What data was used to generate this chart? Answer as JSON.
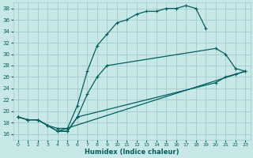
{
  "xlabel": "Humidex (Indice chaleur)",
  "xlim": [
    -0.5,
    23.5
  ],
  "ylim": [
    15,
    39
  ],
  "yticks": [
    16,
    18,
    20,
    22,
    24,
    26,
    28,
    30,
    32,
    34,
    36,
    38
  ],
  "xticks": [
    0,
    1,
    2,
    3,
    4,
    5,
    6,
    7,
    8,
    9,
    10,
    11,
    12,
    13,
    14,
    15,
    16,
    17,
    18,
    19,
    20,
    21,
    22,
    23
  ],
  "bg_color": "#c8e8e8",
  "grid_color": "#a0cccc",
  "line_color": "#006060",
  "line1_x": [
    0,
    1,
    2,
    3,
    4,
    5,
    6,
    7,
    8,
    9,
    10,
    11,
    12,
    13,
    14,
    15,
    16,
    17,
    18,
    19
  ],
  "line1_y": [
    19,
    18.5,
    18.5,
    17.5,
    17,
    17,
    21,
    27,
    31.5,
    33.5,
    35.5,
    36,
    37,
    37.5,
    37.5,
    38,
    38,
    38.5,
    38,
    34.5
  ],
  "line2_x": [
    0,
    1,
    2,
    3,
    4,
    5,
    6,
    7,
    8,
    9,
    20,
    21,
    22,
    23
  ],
  "line2_y": [
    19,
    18.5,
    18.5,
    17.5,
    16.5,
    16.5,
    19,
    23,
    26,
    28,
    31,
    30,
    27.5,
    27
  ],
  "line3_x": [
    0,
    1,
    2,
    3,
    4,
    5,
    6,
    20,
    21,
    22,
    23
  ],
  "line3_y": [
    19,
    18.5,
    18.5,
    17.5,
    16.5,
    16.5,
    19,
    25,
    26,
    26.5,
    27
  ],
  "line4_x": [
    4,
    23
  ],
  "line4_y": [
    16.5,
    27
  ],
  "line5_x": [
    4,
    23
  ],
  "line5_y": [
    16.5,
    27
  ]
}
